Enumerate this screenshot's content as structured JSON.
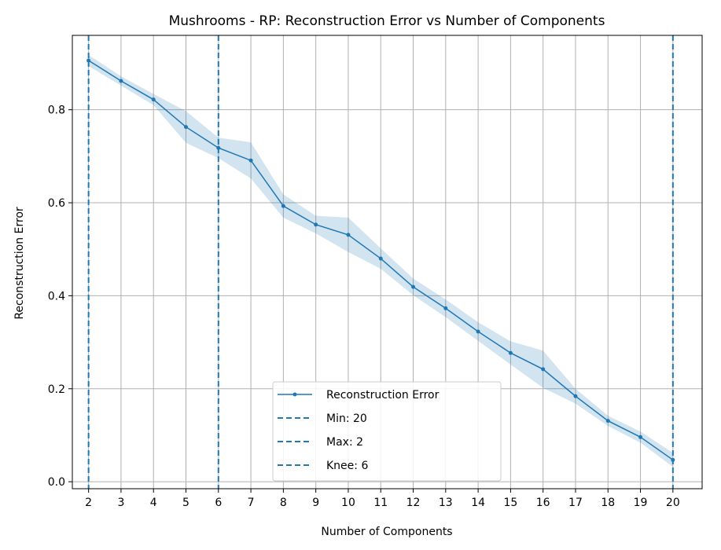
{
  "chart_data": {
    "type": "line",
    "title": "Mushrooms - RP: Reconstruction Error vs Number of Components",
    "xlabel": "Number of Components",
    "ylabel": "Reconstruction Error",
    "xlim": [
      1.5,
      20.9
    ],
    "ylim": [
      -0.015,
      0.96
    ],
    "grid": true,
    "legend_position": "bottom-center",
    "x": [
      2,
      3,
      4,
      5,
      6,
      7,
      8,
      9,
      10,
      11,
      12,
      13,
      14,
      15,
      16,
      17,
      18,
      19,
      20
    ],
    "x_tick_labels": [
      "2",
      "3",
      "4",
      "5",
      "6",
      "7",
      "8",
      "9",
      "10",
      "11",
      "12",
      "13",
      "14",
      "15",
      "16",
      "17",
      "18",
      "19",
      "20"
    ],
    "y_ticks": [
      0.0,
      0.2,
      0.4,
      0.6,
      0.8
    ],
    "y_tick_labels": [
      "0.0",
      "0.2",
      "0.4",
      "0.6",
      "0.8"
    ],
    "series": [
      {
        "name": "Reconstruction Error",
        "color": "#1f77b4",
        "values": [
          0.906,
          0.862,
          0.822,
          0.763,
          0.718,
          0.691,
          0.593,
          0.553,
          0.531,
          0.48,
          0.419,
          0.373,
          0.323,
          0.277,
          0.242,
          0.184,
          0.131,
          0.096,
          0.047
        ],
        "upper": [
          0.918,
          0.872,
          0.834,
          0.797,
          0.74,
          0.73,
          0.618,
          0.572,
          0.568,
          0.502,
          0.437,
          0.392,
          0.343,
          0.302,
          0.282,
          0.2,
          0.142,
          0.108,
          0.062
        ],
        "lower": [
          0.894,
          0.852,
          0.81,
          0.729,
          0.696,
          0.652,
          0.568,
          0.534,
          0.494,
          0.458,
          0.401,
          0.354,
          0.303,
          0.252,
          0.202,
          0.168,
          0.12,
          0.084,
          0.032
        ]
      }
    ],
    "vertical_lines": [
      {
        "label": "Min: 20",
        "x": 20,
        "color": "#1f77b4",
        "style": "dashed"
      },
      {
        "label": "Max: 2",
        "x": 2,
        "color": "#1f77b4",
        "style": "dashed"
      },
      {
        "label": "Knee: 6",
        "x": 6,
        "color": "#1f77b4",
        "style": "dashed"
      }
    ],
    "colors": {
      "line": "#1f77b4",
      "band": "#1f77b4",
      "grid": "#b0b0b0",
      "axis": "#000000"
    }
  }
}
